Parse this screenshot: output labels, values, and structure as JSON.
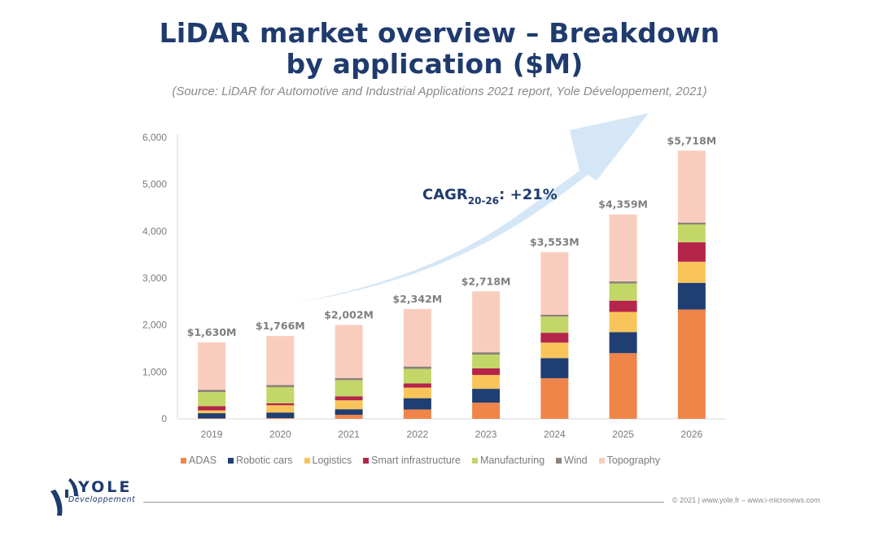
{
  "header": {
    "title_line1": "LiDAR market overview – Breakdown",
    "title_line2": "by application ($M)",
    "source": "(Source: LiDAR for Automotive and Industrial Applications 2021 report, Yole Développement, 2021)"
  },
  "annotation": {
    "cagr_prefix": "CAGR",
    "cagr_subscript": "20-26",
    "cagr_value": ": +21%"
  },
  "chart_data": {
    "type": "bar",
    "stacked": true,
    "title": "LiDAR market overview – Breakdown by application ($M)",
    "xlabel": "",
    "ylabel": "",
    "ylim": [
      0,
      6000
    ],
    "yticks": [
      0,
      1000,
      2000,
      3000,
      4000,
      5000,
      6000
    ],
    "ytick_labels": [
      "0",
      "1,000",
      "2,000",
      "3,000",
      "4,000",
      "5,000",
      "6,000"
    ],
    "grid": false,
    "legend_position": "bottom",
    "categories": [
      "2019",
      "2020",
      "2021",
      "2022",
      "2023",
      "2024",
      "2025",
      "2026"
    ],
    "totals": [
      1630,
      1766,
      2002,
      2342,
      2718,
      3553,
      4359,
      5718
    ],
    "total_labels": [
      "$1,630M",
      "$1,766M",
      "$2,002M",
      "$2,342M",
      "$2,718M",
      "$3,553M",
      "$4,359M",
      "$5,718M"
    ],
    "series": [
      {
        "name": "ADAS",
        "color": "#f0854a",
        "values": [
          10,
          15,
          85,
          200,
          345,
          865,
          1400,
          2330
        ]
      },
      {
        "name": "Robotic cars",
        "color": "#1f3f73",
        "values": [
          110,
          120,
          120,
          240,
          295,
          430,
          450,
          570
        ]
      },
      {
        "name": "Logistics",
        "color": "#f9c55a",
        "values": [
          60,
          155,
          190,
          225,
          295,
          330,
          430,
          450
        ]
      },
      {
        "name": "Smart infrastructure",
        "color": "#b5254a",
        "values": [
          90,
          40,
          85,
          90,
          140,
          210,
          240,
          415
        ]
      },
      {
        "name": "Manufacturing",
        "color": "#c2d768",
        "values": [
          300,
          345,
          345,
          310,
          295,
          345,
          365,
          380
        ]
      },
      {
        "name": "Wind",
        "color": "#8c8278",
        "values": [
          50,
          45,
          45,
          50,
          50,
          40,
          45,
          40
        ]
      },
      {
        "name": "Topography",
        "color": "#f9cdbd",
        "values": [
          1010,
          1046,
          1132,
          1227,
          1298,
          1333,
          1429,
          1533
        ]
      }
    ]
  },
  "footer": {
    "logo_name": "YOLE",
    "logo_sub": "Développement",
    "copyright": "© 2021 | www.yole.fr – www.i-micronews.com"
  }
}
